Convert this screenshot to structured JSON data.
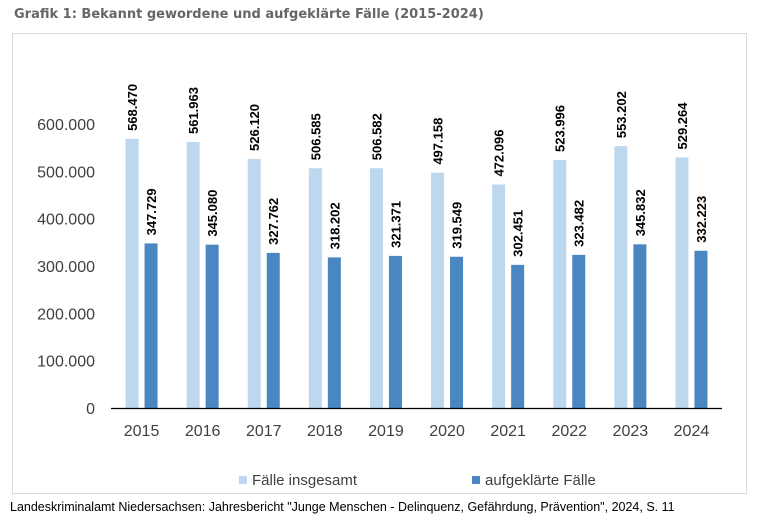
{
  "title": "Grafik 1: Bekannt gewordene und aufgeklärte Fälle (2015-2024)",
  "source": "Landeskriminalamt Niedersachsen: Jahresbericht \"Junge Menschen - Delinquenz, Gefährdung, Prävention\", 2024, S. 11",
  "colors": {
    "total": "#bdd7ee",
    "cleared": "#4a86c2"
  },
  "chart_data": {
    "type": "bar",
    "categories": [
      "2015",
      "2016",
      "2017",
      "2018",
      "2019",
      "2020",
      "2021",
      "2022",
      "2023",
      "2024"
    ],
    "series": [
      {
        "name": "Fälle insgesamt",
        "values": [
          568470,
          561963,
          526120,
          506585,
          506582,
          497158,
          472096,
          523996,
          553202,
          529264
        ],
        "labels": [
          "568.470",
          "561.963",
          "526.120",
          "506.585",
          "506.582",
          "497.158",
          "472.096",
          "523.996",
          "553.202",
          "529.264"
        ]
      },
      {
        "name": "aufgeklärte Fälle",
        "values": [
          347729,
          345080,
          327762,
          318202,
          321371,
          319549,
          302451,
          323482,
          345832,
          332223
        ],
        "labels": [
          "347.729",
          "345.080",
          "327.762",
          "318.202",
          "321.371",
          "319.549",
          "302.451",
          "323.482",
          "345.832",
          "332.223"
        ]
      }
    ],
    "ylim": [
      0,
      600000
    ],
    "yticks": [
      0,
      100000,
      200000,
      300000,
      400000,
      500000,
      600000
    ],
    "ytick_labels": [
      "0",
      "100.000",
      "200.000",
      "300.000",
      "400.000",
      "500.000",
      "600.000"
    ],
    "grid": false,
    "legend": "bottom-center"
  }
}
